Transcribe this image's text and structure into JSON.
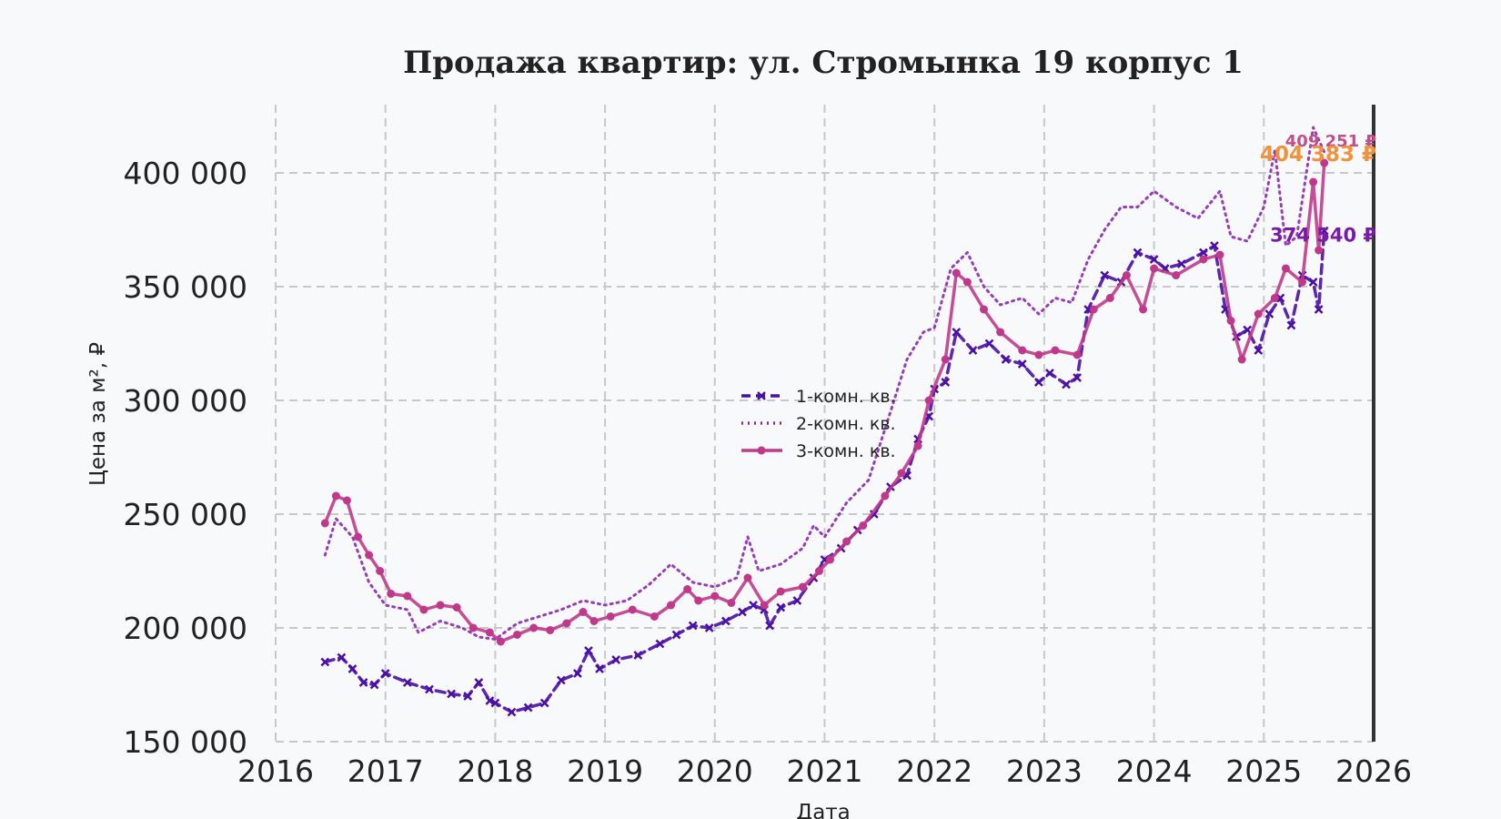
{
  "chart_data": {
    "type": "line",
    "title": "Продажа квартир: ул. Стромынка 19 корпус 1",
    "xlabel": "Дата",
    "ylabel": "Цена за м², ₽",
    "xlim": [
      2016,
      2026
    ],
    "ylim": [
      150000,
      430000
    ],
    "x_ticks": [
      2016,
      2017,
      2018,
      2019,
      2020,
      2021,
      2022,
      2023,
      2024,
      2025,
      2026
    ],
    "y_ticks": [
      150000,
      200000,
      250000,
      300000,
      350000,
      400000
    ],
    "y_tick_labels": [
      "150 000",
      "200 000",
      "250 000",
      "300 000",
      "350 000",
      "400 000"
    ],
    "grid": true,
    "legend_position": "center",
    "series": [
      {
        "name": "1-комн. кв.",
        "color": "#4a0fa6",
        "style": "dashed-x-markers",
        "end_label": "374 540 ₽",
        "points": [
          [
            2016.45,
            185000
          ],
          [
            2016.6,
            187000
          ],
          [
            2016.7,
            182000
          ],
          [
            2016.8,
            176000
          ],
          [
            2016.9,
            175000
          ],
          [
            2017.0,
            180000
          ],
          [
            2017.2,
            176000
          ],
          [
            2017.4,
            173000
          ],
          [
            2017.6,
            171000
          ],
          [
            2017.75,
            170000
          ],
          [
            2017.85,
            176000
          ],
          [
            2017.95,
            168000
          ],
          [
            2018.0,
            167000
          ],
          [
            2018.15,
            163000
          ],
          [
            2018.3,
            165000
          ],
          [
            2018.45,
            167000
          ],
          [
            2018.6,
            177000
          ],
          [
            2018.75,
            180000
          ],
          [
            2018.85,
            190000
          ],
          [
            2018.95,
            182000
          ],
          [
            2019.1,
            186000
          ],
          [
            2019.3,
            188000
          ],
          [
            2019.5,
            193000
          ],
          [
            2019.65,
            197000
          ],
          [
            2019.8,
            201000
          ],
          [
            2019.95,
            200000
          ],
          [
            2020.1,
            203000
          ],
          [
            2020.25,
            207000
          ],
          [
            2020.35,
            210000
          ],
          [
            2020.45,
            208000
          ],
          [
            2020.5,
            201000
          ],
          [
            2020.6,
            209000
          ],
          [
            2020.75,
            212000
          ],
          [
            2020.9,
            222000
          ],
          [
            2021.0,
            230000
          ],
          [
            2021.15,
            235000
          ],
          [
            2021.3,
            243000
          ],
          [
            2021.45,
            250000
          ],
          [
            2021.6,
            262000
          ],
          [
            2021.75,
            267000
          ],
          [
            2021.85,
            283000
          ],
          [
            2021.95,
            293000
          ],
          [
            2022.0,
            305000
          ],
          [
            2022.1,
            308000
          ],
          [
            2022.2,
            330000
          ],
          [
            2022.35,
            322000
          ],
          [
            2022.5,
            325000
          ],
          [
            2022.65,
            318000
          ],
          [
            2022.8,
            316000
          ],
          [
            2022.95,
            308000
          ],
          [
            2023.05,
            312000
          ],
          [
            2023.2,
            307000
          ],
          [
            2023.3,
            310000
          ],
          [
            2023.4,
            340000
          ],
          [
            2023.55,
            355000
          ],
          [
            2023.7,
            352000
          ],
          [
            2023.85,
            365000
          ],
          [
            2024.0,
            362000
          ],
          [
            2024.1,
            358000
          ],
          [
            2024.25,
            360000
          ],
          [
            2024.45,
            365000
          ],
          [
            2024.55,
            368000
          ],
          [
            2024.65,
            340000
          ],
          [
            2024.75,
            328000
          ],
          [
            2024.85,
            331000
          ],
          [
            2024.95,
            322000
          ],
          [
            2025.05,
            338000
          ],
          [
            2025.15,
            345000
          ],
          [
            2025.25,
            333000
          ],
          [
            2025.35,
            355000
          ],
          [
            2025.45,
            352000
          ],
          [
            2025.5,
            340000
          ],
          [
            2025.55,
            374540
          ]
        ]
      },
      {
        "name": "2-комн. кв.",
        "color": "#8c28b4",
        "style": "dotted",
        "end_label": "409 251 ₽",
        "points": [
          [
            2016.45,
            232000
          ],
          [
            2016.55,
            248000
          ],
          [
            2016.7,
            240000
          ],
          [
            2016.85,
            220000
          ],
          [
            2017.0,
            210000
          ],
          [
            2017.2,
            208000
          ],
          [
            2017.3,
            198000
          ],
          [
            2017.5,
            203000
          ],
          [
            2017.7,
            200000
          ],
          [
            2017.85,
            196000
          ],
          [
            2018.0,
            195000
          ],
          [
            2018.2,
            202000
          ],
          [
            2018.4,
            205000
          ],
          [
            2018.6,
            208000
          ],
          [
            2018.8,
            212000
          ],
          [
            2019.0,
            210000
          ],
          [
            2019.2,
            212000
          ],
          [
            2019.4,
            219000
          ],
          [
            2019.6,
            228000
          ],
          [
            2019.8,
            220000
          ],
          [
            2020.0,
            218000
          ],
          [
            2020.2,
            222000
          ],
          [
            2020.3,
            240000
          ],
          [
            2020.4,
            225000
          ],
          [
            2020.6,
            228000
          ],
          [
            2020.8,
            235000
          ],
          [
            2020.9,
            245000
          ],
          [
            2021.0,
            240000
          ],
          [
            2021.2,
            255000
          ],
          [
            2021.4,
            265000
          ],
          [
            2021.6,
            295000
          ],
          [
            2021.75,
            318000
          ],
          [
            2021.9,
            330000
          ],
          [
            2022.0,
            332000
          ],
          [
            2022.15,
            358000
          ],
          [
            2022.3,
            365000
          ],
          [
            2022.45,
            350000
          ],
          [
            2022.6,
            342000
          ],
          [
            2022.8,
            345000
          ],
          [
            2022.95,
            338000
          ],
          [
            2023.1,
            345000
          ],
          [
            2023.25,
            343000
          ],
          [
            2023.4,
            362000
          ],
          [
            2023.55,
            375000
          ],
          [
            2023.7,
            385000
          ],
          [
            2023.85,
            385000
          ],
          [
            2024.0,
            392000
          ],
          [
            2024.2,
            385000
          ],
          [
            2024.4,
            380000
          ],
          [
            2024.6,
            392000
          ],
          [
            2024.7,
            372000
          ],
          [
            2024.85,
            370000
          ],
          [
            2025.0,
            385000
          ],
          [
            2025.1,
            410000
          ],
          [
            2025.2,
            368000
          ],
          [
            2025.3,
            372000
          ],
          [
            2025.45,
            420000
          ],
          [
            2025.55,
            409251
          ]
        ]
      },
      {
        "name": "3-комн. кв.",
        "color": "#c0388a",
        "style": "solid-dot-markers",
        "end_label": "404 383 ₽",
        "points": [
          [
            2016.45,
            246000
          ],
          [
            2016.55,
            258000
          ],
          [
            2016.65,
            256000
          ],
          [
            2016.75,
            240000
          ],
          [
            2016.85,
            232000
          ],
          [
            2016.95,
            225000
          ],
          [
            2017.05,
            215000
          ],
          [
            2017.2,
            214000
          ],
          [
            2017.35,
            208000
          ],
          [
            2017.5,
            210000
          ],
          [
            2017.65,
            209000
          ],
          [
            2017.8,
            200000
          ],
          [
            2017.95,
            198000
          ],
          [
            2018.05,
            194000
          ],
          [
            2018.2,
            197000
          ],
          [
            2018.35,
            200000
          ],
          [
            2018.5,
            199000
          ],
          [
            2018.65,
            202000
          ],
          [
            2018.8,
            207000
          ],
          [
            2018.9,
            203000
          ],
          [
            2019.05,
            205000
          ],
          [
            2019.25,
            208000
          ],
          [
            2019.45,
            205000
          ],
          [
            2019.6,
            210000
          ],
          [
            2019.75,
            217000
          ],
          [
            2019.85,
            212000
          ],
          [
            2020.0,
            214000
          ],
          [
            2020.15,
            211000
          ],
          [
            2020.3,
            222000
          ],
          [
            2020.45,
            210000
          ],
          [
            2020.6,
            216000
          ],
          [
            2020.8,
            218000
          ],
          [
            2020.95,
            225000
          ],
          [
            2021.05,
            230000
          ],
          [
            2021.2,
            238000
          ],
          [
            2021.35,
            245000
          ],
          [
            2021.55,
            258000
          ],
          [
            2021.7,
            268000
          ],
          [
            2021.85,
            280000
          ],
          [
            2021.95,
            300000
          ],
          [
            2022.1,
            318000
          ],
          [
            2022.2,
            356000
          ],
          [
            2022.3,
            352000
          ],
          [
            2022.45,
            340000
          ],
          [
            2022.6,
            330000
          ],
          [
            2022.8,
            322000
          ],
          [
            2022.95,
            320000
          ],
          [
            2023.1,
            322000
          ],
          [
            2023.3,
            320000
          ],
          [
            2023.45,
            340000
          ],
          [
            2023.6,
            345000
          ],
          [
            2023.75,
            355000
          ],
          [
            2023.9,
            340000
          ],
          [
            2024.0,
            358000
          ],
          [
            2024.2,
            355000
          ],
          [
            2024.45,
            362000
          ],
          [
            2024.6,
            364000
          ],
          [
            2024.7,
            335000
          ],
          [
            2024.8,
            318000
          ],
          [
            2024.95,
            338000
          ],
          [
            2025.1,
            345000
          ],
          [
            2025.2,
            358000
          ],
          [
            2025.35,
            352000
          ],
          [
            2025.45,
            396000
          ],
          [
            2025.5,
            366000
          ],
          [
            2025.55,
            404383
          ]
        ]
      }
    ]
  }
}
